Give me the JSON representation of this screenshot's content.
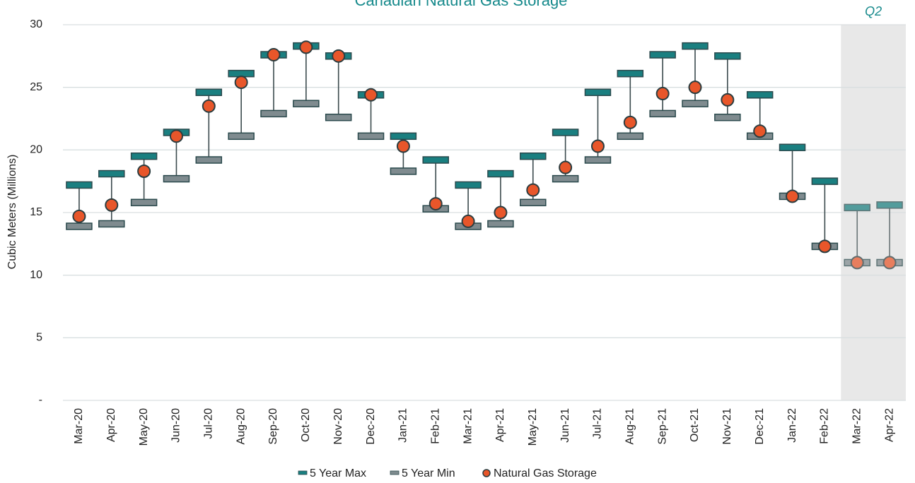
{
  "chart_data": {
    "type": "range",
    "title": "Canadian Natural Gas Storage",
    "y_label": "Cubic Meters (Millions)",
    "categories": [
      "Mar-20",
      "Apr-20",
      "May-20",
      "Jun-20",
      "Jul-20",
      "Aug-20",
      "Sep-20",
      "Oct-20",
      "Nov-20",
      "Dec-20",
      "Jan-21",
      "Feb-21",
      "Mar-21",
      "Apr-21",
      "May-21",
      "Jun-21",
      "Jul-21",
      "Aug-21",
      "Sep-21",
      "Oct-21",
      "Nov-21",
      "Dec-21",
      "Jan-22",
      "Feb-22",
      "Mar-22",
      "Apr-22"
    ],
    "series": [
      {
        "name": "5 Year Max",
        "color": "#1a7f80",
        "marker": "dash",
        "values": [
          17.2,
          18.1,
          19.5,
          21.4,
          24.6,
          26.1,
          27.6,
          28.3,
          27.5,
          24.4,
          21.1,
          19.2,
          17.2,
          18.1,
          19.5,
          21.4,
          24.6,
          26.1,
          27.6,
          28.3,
          27.5,
          24.4,
          20.2,
          17.5,
          15.4,
          15.6
        ]
      },
      {
        "name": "5 Year Min",
        "color": "#7f8b8f",
        "marker": "dash",
        "values": [
          13.9,
          14.1,
          15.8,
          17.7,
          19.2,
          21.1,
          22.9,
          23.7,
          22.6,
          21.1,
          18.3,
          15.3,
          13.9,
          14.1,
          15.8,
          17.7,
          19.2,
          21.1,
          22.9,
          23.7,
          22.6,
          21.1,
          16.3,
          12.3,
          11.0,
          11.0
        ]
      },
      {
        "name": "Natural Gas Storage",
        "color": "#e8562a",
        "marker": "circle",
        "values": [
          14.7,
          15.6,
          18.3,
          21.1,
          23.5,
          25.4,
          27.6,
          28.2,
          27.5,
          24.4,
          20.3,
          15.7,
          14.3,
          15.0,
          16.8,
          18.6,
          20.3,
          22.2,
          24.5,
          25.0,
          24.0,
          21.5,
          16.3,
          12.3,
          11.0,
          11.0
        ]
      }
    ],
    "ylim": [
      0,
      30
    ],
    "yticks": [
      {
        "value": 0,
        "label": "-"
      },
      5,
      10,
      15,
      20,
      25,
      30
    ],
    "grid": true,
    "legend": "bottom",
    "annotations": [
      {
        "text": "Q2",
        "from": "Mar-22",
        "to": "Apr-22"
      }
    ]
  }
}
